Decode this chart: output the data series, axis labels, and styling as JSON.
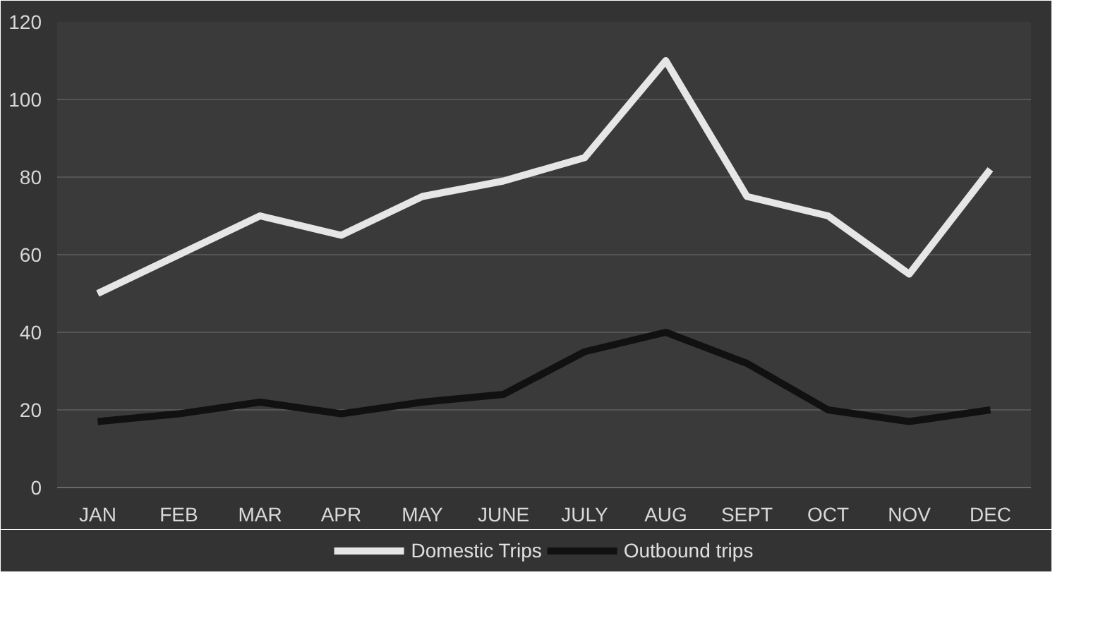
{
  "chart_data": {
    "type": "line",
    "categories": [
      "JAN",
      "FEB",
      "MAR",
      "APR",
      "MAY",
      "JUNE",
      "JULY",
      "AUG",
      "SEPT",
      "OCT",
      "NOV",
      "DEC"
    ],
    "series": [
      {
        "name": "Domestic Trips",
        "color": "#e6e6e6",
        "values": [
          50,
          60,
          70,
          65,
          75,
          79,
          85,
          110,
          75,
          70,
          55,
          82
        ]
      },
      {
        "name": "Outbound trips",
        "color": "#111111",
        "values": [
          17,
          19,
          22,
          19,
          22,
          24,
          35,
          40,
          32,
          20,
          17,
          20
        ]
      }
    ],
    "ylim": [
      0,
      120
    ],
    "yticks": [
      0,
      20,
      40,
      60,
      80,
      100,
      120
    ],
    "grid": "y",
    "legend": "bottom",
    "marker": "none",
    "line_style": "solid"
  }
}
